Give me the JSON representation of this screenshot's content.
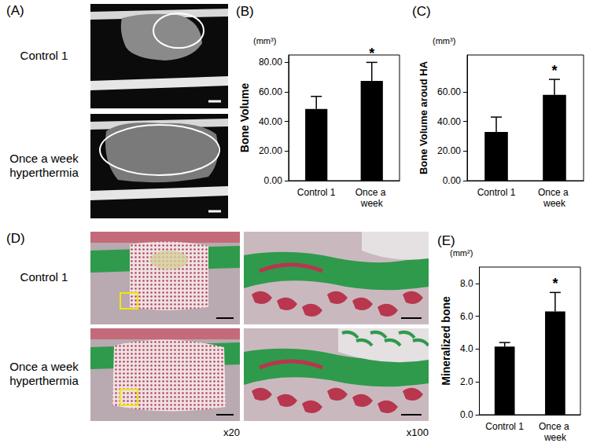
{
  "chart_data": [
    {
      "type": "bar",
      "title": "(B)",
      "ylabel": "Bone Volume",
      "categories": [
        "Control 1",
        "Once a week"
      ],
      "values": [
        48.5,
        67.5
      ],
      "errors": [
        8.5,
        12.5
      ],
      "color": "#000000",
      "ylim": [
        0,
        85
      ],
      "yticks": [
        {
          "value": 0,
          "label": "0.00"
        },
        {
          "value": 20,
          "label": "20.00"
        },
        {
          "value": 40,
          "label": "40.00"
        },
        {
          "value": 60,
          "label": "60.00"
        },
        {
          "value": 80,
          "label": "80.00"
        }
      ],
      "grid": false,
      "annotations": [
        {
          "text": "(mm³)"
        },
        {
          "text": "*",
          "category": "Once a week"
        }
      ]
    },
    {
      "type": "bar",
      "title": "(C)",
      "ylabel": "Bone Volume aroud HA",
      "categories": [
        "Control 1",
        "Once a week"
      ],
      "values": [
        33,
        58
      ],
      "errors": [
        10,
        10.5
      ],
      "color": "#000000",
      "ylim": [
        0,
        85
      ],
      "yticks": [
        {
          "value": 0,
          "label": "0.00"
        },
        {
          "value": 20,
          "label": "20.00"
        },
        {
          "value": 40,
          "label": "40.00"
        },
        {
          "value": 60,
          "label": "60.00"
        }
      ],
      "grid": false,
      "annotations": [
        {
          "text": "(mm³)"
        },
        {
          "text": "*",
          "category": "Once a week"
        }
      ]
    },
    {
      "type": "bar",
      "title": "(E)",
      "ylabel": "Mineralized bone",
      "categories": [
        "Control 1",
        "Once a week"
      ],
      "values": [
        4.15,
        6.3
      ],
      "errors": [
        0.25,
        1.15
      ],
      "color": "#000000",
      "ylim": [
        0,
        9
      ],
      "yticks": [
        {
          "value": 0,
          "label": "0.0"
        },
        {
          "value": 2,
          "label": "2.0"
        },
        {
          "value": 4,
          "label": "4.0"
        },
        {
          "value": 6,
          "label": "6.0"
        },
        {
          "value": 8,
          "label": "8.0"
        }
      ],
      "grid": false,
      "annotations": [
        {
          "text": "(mm²)"
        },
        {
          "text": "*",
          "category": "Once a week"
        }
      ]
    }
  ],
  "images": [
    {
      "label": "(A)",
      "rows": [
        "Control 1",
        "Once a week hyperthermia"
      ]
    },
    {
      "label": "(D)",
      "rows": [
        "Control 1",
        "Once a week hyperthermia"
      ],
      "columns": [
        "x20",
        "x100"
      ]
    }
  ]
}
